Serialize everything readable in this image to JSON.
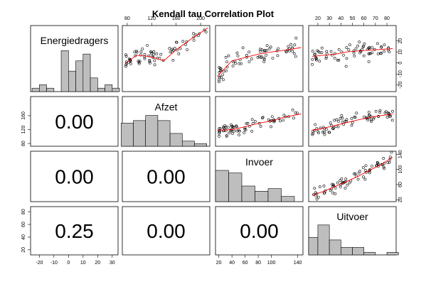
{
  "chart_data": {
    "type": "scatter",
    "title": "Kendall tau Correlation Plot",
    "variables": [
      "Energiedragers",
      "Afzet",
      "Invoer",
      "Uitvoer"
    ],
    "ranges": {
      "Energiedragers": [
        -26,
        34
      ],
      "Afzet": [
        72,
        215
      ],
      "Invoer": [
        15,
        148
      ],
      "Uitvoer": [
        12,
        88
      ]
    },
    "ticks": {
      "Energiedragers": [
        -20,
        -10,
        0,
        10,
        20,
        30
      ],
      "Afzet": [
        80,
        120,
        160,
        200
      ],
      "Invoer": [
        20,
        40,
        60,
        80,
        100,
        140
      ],
      "Uitvoer": [
        20,
        30,
        40,
        50,
        60,
        70,
        80
      ]
    },
    "side_ticks": {
      "left": {
        "Afzet": [
          80,
          120,
          160
        ],
        "Uitvoer": [
          20,
          40,
          60,
          80
        ]
      },
      "right": {
        "Energiedragers": [
          -20,
          -10,
          0,
          10,
          20
        ],
        "Invoer": [
          20,
          60,
          100,
          140
        ]
      }
    },
    "correlations": [
      {
        "row": "Invoer",
        "col": "Energiedragers",
        "label": "0.00"
      },
      {
        "row": "Afzet",
        "col": "Energiedragers",
        "label": "0.00"
      },
      {
        "row": "Uitvoer",
        "col": "Energiedragers",
        "label": "0.25"
      },
      {
        "row": "Invoer",
        "col": "Afzet",
        "label": "0.00"
      },
      {
        "row": "Uitvoer",
        "col": "Afzet",
        "label": "0.00"
      },
      {
        "row": "Uitvoer",
        "col": "Invoer",
        "label": "0.00"
      }
    ],
    "histograms": {
      "Energiedragers": {
        "breaks": [
          -25,
          -20,
          -15,
          -10,
          -5,
          0,
          5,
          10,
          15,
          20,
          25,
          30,
          35
        ],
        "counts": [
          1,
          2,
          1,
          0,
          12,
          6,
          9,
          11,
          4,
          1,
          2,
          1
        ]
      },
      "Afzet": {
        "breaks": [
          70,
          90,
          110,
          130,
          150,
          170,
          190,
          210
        ],
        "counts": [
          9,
          10,
          12,
          10,
          5,
          2,
          1
        ]
      },
      "Invoer": {
        "breaks": [
          15,
          35,
          55,
          75,
          95,
          115,
          135,
          150
        ],
        "counts": [
          12,
          11,
          6,
          4,
          5,
          2,
          0
        ]
      },
      "Uitvoer": {
        "breaks": [
          12,
          20,
          30,
          40,
          50,
          60,
          70,
          80,
          90
        ],
        "counts": [
          7,
          12,
          6,
          3,
          3,
          1,
          0,
          1
        ]
      }
    },
    "smoothers": {
      "Afzet|Energiedragers": [
        [
          78,
          0
        ],
        [
          95,
          7
        ],
        [
          115,
          6
        ],
        [
          140,
          2
        ],
        [
          160,
          12
        ],
        [
          185,
          22
        ],
        [
          212,
          32
        ]
      ],
      "Invoer|Energiedragers": [
        [
          18,
          -12
        ],
        [
          40,
          2
        ],
        [
          60,
          5
        ],
        [
          80,
          8
        ],
        [
          100,
          10
        ],
        [
          125,
          12
        ],
        [
          145,
          14
        ]
      ],
      "Uitvoer|Energiedragers": [
        [
          15,
          6
        ],
        [
          25,
          7
        ],
        [
          35,
          8
        ],
        [
          45,
          10
        ],
        [
          55,
          11
        ],
        [
          70,
          12
        ],
        [
          85,
          13
        ]
      ],
      "Invoer|Afzet": [
        [
          18,
          118
        ],
        [
          40,
          120
        ],
        [
          60,
          128
        ],
        [
          80,
          138
        ],
        [
          100,
          145
        ],
        [
          120,
          156
        ],
        [
          145,
          165
        ]
      ],
      "Uitvoer|Afzet": [
        [
          15,
          118
        ],
        [
          25,
          124
        ],
        [
          35,
          132
        ],
        [
          45,
          140
        ],
        [
          55,
          148
        ],
        [
          70,
          158
        ],
        [
          85,
          165
        ]
      ],
      "Uitvoer|Invoer": [
        [
          15,
          32
        ],
        [
          25,
          42
        ],
        [
          35,
          55
        ],
        [
          45,
          68
        ],
        [
          55,
          82
        ],
        [
          65,
          98
        ],
        [
          75,
          113
        ],
        [
          85,
          132
        ]
      ]
    }
  }
}
